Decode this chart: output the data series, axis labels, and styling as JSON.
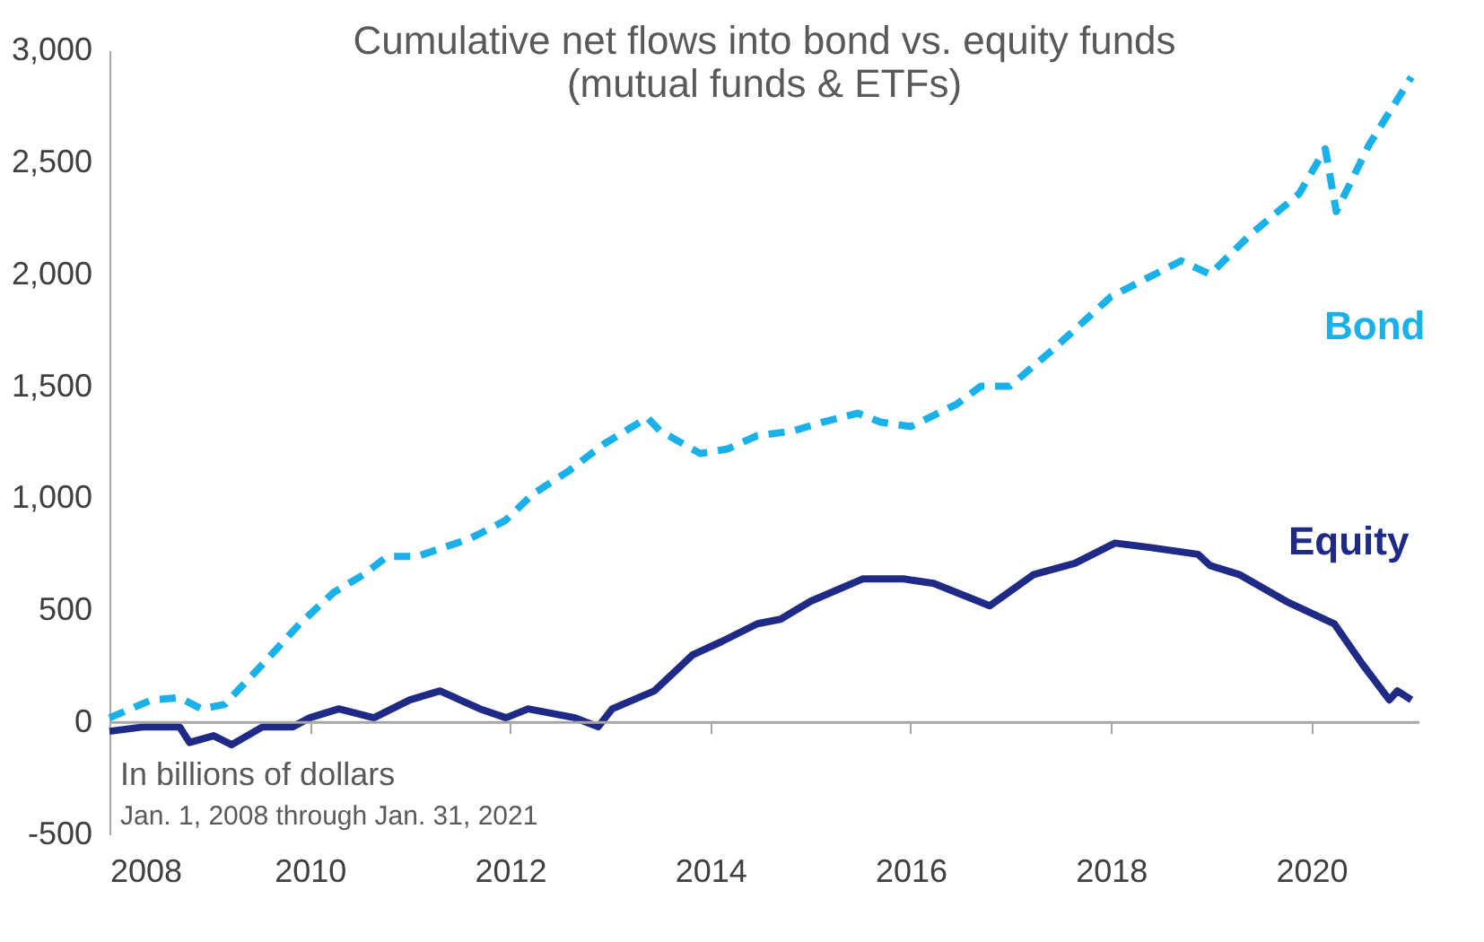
{
  "chart_data": {
    "type": "line",
    "title": [
      "Cumulative net flows into bond vs. equity funds",
      "(mutual funds & ETFs)"
    ],
    "annotations": [
      "In billions of dollars",
      "Jan. 1, 2008 through Jan. 31, 2021"
    ],
    "xlim": [
      2008,
      2021.08
    ],
    "xticks": [
      2008,
      2010,
      2012,
      2014,
      2016,
      2018,
      2020
    ],
    "ylim": [
      -500,
      3000
    ],
    "yticks": [
      {
        "value": -500,
        "label": "-500"
      },
      0,
      500,
      {
        "value": 1000,
        "label": "1,000"
      },
      {
        "value": 1500,
        "label": "1,500"
      },
      {
        "value": 2000,
        "label": "2,000"
      },
      {
        "value": 2500,
        "label": "2,500"
      },
      {
        "value": 3000,
        "label": "3,000"
      }
    ],
    "grid": false,
    "ref_lines": [
      {
        "axis": "y",
        "value": 0,
        "color": "#a6a6a6"
      }
    ],
    "series": [
      {
        "name": "Bond",
        "color": "#1ab0ea",
        "line_style": "dashed",
        "x": [
          2008.0,
          2008.42,
          2008.7,
          2008.92,
          2009.15,
          2009.53,
          2009.9,
          2010.24,
          2010.54,
          2010.77,
          2011.07,
          2011.6,
          2011.95,
          2012.23,
          2012.58,
          2012.93,
          2013.37,
          2013.5,
          2013.9,
          2014.17,
          2014.47,
          2014.82,
          2015.12,
          2015.47,
          2015.7,
          2016.0,
          2016.46,
          2016.7,
          2016.99,
          2017.41,
          2018.0,
          2018.7,
          2018.99,
          2019.4,
          2019.88,
          2020.14,
          2020.25,
          2020.58,
          2021.0
        ],
        "values": [
          20,
          100,
          110,
          60,
          80,
          260,
          440,
          580,
          660,
          740,
          740,
          820,
          900,
          1020,
          1120,
          1240,
          1360,
          1300,
          1200,
          1220,
          1280,
          1300,
          1340,
          1380,
          1340,
          1320,
          1420,
          1500,
          1500,
          1660,
          1900,
          2060,
          2000,
          2180,
          2360,
          2560,
          2280,
          2580,
          2880
        ]
      },
      {
        "name": "Equity",
        "color": "#1f2a87",
        "line_style": "solid",
        "x": [
          2008.0,
          2008.35,
          2008.7,
          2008.8,
          2009.04,
          2009.22,
          2009.53,
          2009.83,
          2010.0,
          2010.29,
          2010.64,
          2011.0,
          2011.3,
          2011.7,
          2011.96,
          2012.18,
          2012.65,
          2012.88,
          2013.02,
          2013.44,
          2013.82,
          2014.11,
          2014.47,
          2014.7,
          2015.0,
          2015.52,
          2015.93,
          2016.23,
          2016.79,
          2017.23,
          2017.64,
          2018.04,
          2018.4,
          2018.87,
          2018.99,
          2019.28,
          2019.75,
          2020.23,
          2020.51,
          2020.78,
          2020.86,
          2021.0
        ],
        "values": [
          -40,
          -20,
          -20,
          -90,
          -60,
          -100,
          -20,
          -20,
          20,
          60,
          20,
          100,
          140,
          60,
          20,
          60,
          20,
          -20,
          60,
          140,
          300,
          360,
          440,
          460,
          540,
          640,
          640,
          620,
          520,
          660,
          710,
          800,
          780,
          750,
          700,
          660,
          540,
          440,
          260,
          100,
          140,
          100
        ]
      }
    ]
  }
}
